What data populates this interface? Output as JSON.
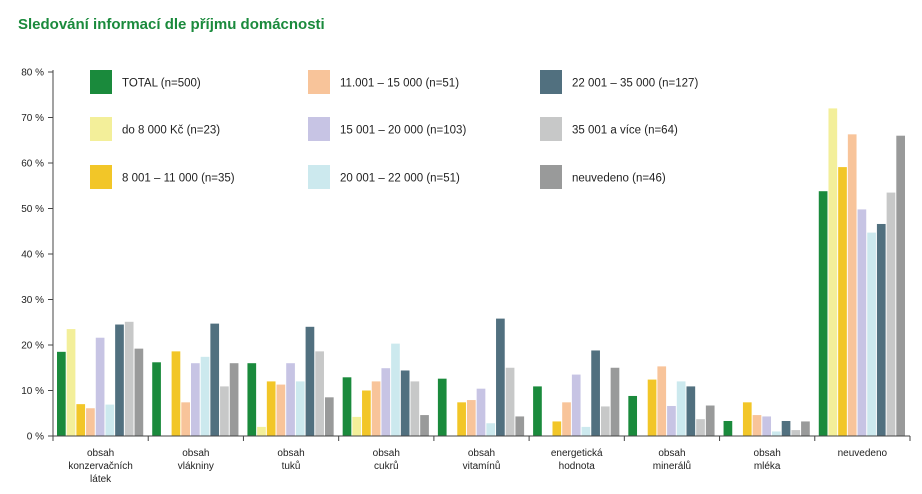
{
  "title": "Sledování informací dle příjmu domácnosti",
  "chart_data": {
    "type": "bar",
    "ylim": [
      0,
      80
    ],
    "yticks": [
      "0 %",
      "10 %",
      "20 %",
      "30 %",
      "40 %",
      "50 %",
      "60 %",
      "70 %",
      "80 %"
    ],
    "ytick_values": [
      0,
      10,
      20,
      30,
      40,
      50,
      60,
      70,
      80
    ],
    "grid": false,
    "legend_position": "top-left",
    "categories": [
      [
        "obsah",
        "konzervačních",
        "látek"
      ],
      [
        "obsah",
        "vlákniny"
      ],
      [
        "obsah",
        "tuků"
      ],
      [
        "obsah",
        "cukrů"
      ],
      [
        "obsah",
        "vitamínů"
      ],
      [
        "energetická",
        "hodnota"
      ],
      [
        "obsah",
        "minerálů"
      ],
      [
        "obsah",
        "mléka"
      ],
      [
        "neuvedeno"
      ]
    ],
    "series": [
      {
        "name": "TOTAL (n=500)",
        "color": "#1a8a3c",
        "values": [
          18.5,
          16.2,
          16.0,
          12.9,
          12.6,
          10.9,
          8.8,
          3.3,
          53.8
        ]
      },
      {
        "name": "do 8 000 Kč (n=23)",
        "color": "#f3ef9a",
        "values": [
          23.5,
          0,
          2.0,
          4.2,
          0,
          0,
          0,
          0,
          72.0
        ]
      },
      {
        "name": "8 001 – 11 000 (n=35)",
        "color": "#f2c628",
        "values": [
          7.0,
          18.6,
          12.0,
          10.0,
          7.4,
          3.2,
          12.4,
          7.4,
          59.1
        ]
      },
      {
        "name": "11.001 – 15 000 (n=51)",
        "color": "#f8c49a",
        "values": [
          6.1,
          7.4,
          11.3,
          12.0,
          7.9,
          7.4,
          15.3,
          4.6,
          66.3
        ]
      },
      {
        "name": "15 001 – 20 000 (n=103)",
        "color": "#c7c4e4",
        "values": [
          21.6,
          16.0,
          16.0,
          14.9,
          10.4,
          13.5,
          6.6,
          4.3,
          49.8
        ]
      },
      {
        "name": "20 001 – 22 000 (n=51)",
        "color": "#cce9ee",
        "values": [
          6.9,
          17.4,
          12.0,
          20.3,
          2.8,
          2.0,
          12.0,
          1.0,
          44.7
        ]
      },
      {
        "name": "22 001 – 35 000 (n=127)",
        "color": "#51707f",
        "values": [
          24.5,
          24.7,
          24.0,
          14.4,
          25.8,
          18.8,
          10.9,
          3.3,
          46.6
        ]
      },
      {
        "name": "35 001 a více (n=64)",
        "color": "#c7c8c8",
        "values": [
          25.1,
          10.9,
          18.6,
          12.0,
          15.0,
          6.5,
          3.7,
          1.3,
          53.5
        ]
      },
      {
        "name": "neuvedeno (n=46)",
        "color": "#999a9a",
        "values": [
          19.2,
          16.0,
          8.5,
          4.6,
          4.3,
          15.0,
          6.7,
          3.2,
          66.0
        ]
      }
    ]
  }
}
